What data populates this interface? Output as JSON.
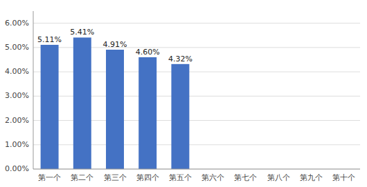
{
  "chart_data": {
    "type": "bar",
    "categories": [
      "第一个",
      "第二个",
      "第三个",
      "第四个",
      "第五个",
      "第六个",
      "第七个",
      "第八个",
      "第九个",
      "第十个"
    ],
    "values": [
      0.0511,
      0.0541,
      0.0491,
      0.046,
      0.0432,
      null,
      null,
      null,
      null,
      null
    ],
    "value_labels": [
      "5.11%",
      "5.41%",
      "4.91%",
      "4.60%",
      "4.32%",
      null,
      null,
      null,
      null,
      null
    ],
    "color": "#4472C4",
    "ylim": [
      0.0,
      0.065
    ],
    "yticks": [
      {
        "value": 0.0,
        "label": "0.00%"
      },
      {
        "value": 0.01,
        "label": "1.00%"
      },
      {
        "value": 0.02,
        "label": "2.00%"
      },
      {
        "value": 0.03,
        "label": "3.00%"
      },
      {
        "value": 0.04,
        "label": "4.00%"
      },
      {
        "value": 0.05,
        "label": "5.00%"
      },
      {
        "value": 0.06,
        "label": "6.00%"
      }
    ],
    "grid": true,
    "data_labels": true
  }
}
